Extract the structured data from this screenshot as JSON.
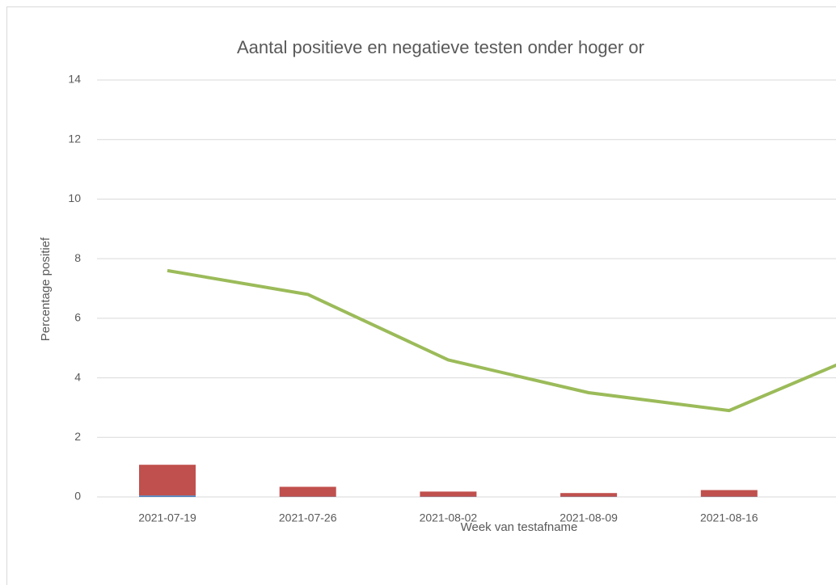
{
  "chart_data": {
    "type": "bar",
    "title": "Aantal positieve en negatieve testen onder hoger or",
    "x_label": "Week van testafname",
    "y_label": "Percentage positief",
    "categories": [
      "2021-07-19",
      "2021-07-26",
      "2021-08-02",
      "2021-08-09",
      "2021-08-16",
      null
    ],
    "stacked": true,
    "series": [
      {
        "color": "#4f81bd",
        "values": [
          0.05,
          0.01,
          0.01,
          0.01,
          0.01,
          null
        ]
      },
      {
        "color": "#c0504d",
        "values": [
          1.03,
          0.33,
          0.17,
          0.12,
          0.22,
          null
        ]
      },
      {
        "type": "line",
        "color": "#9bbb59",
        "values": [
          7.6,
          6.8,
          4.6,
          3.5,
          2.9,
          4.9
        ]
      }
    ],
    "ylim": [
      0,
      14
    ],
    "yticks": [
      0,
      2,
      4,
      6,
      8,
      10,
      12,
      14
    ],
    "grid": true
  }
}
